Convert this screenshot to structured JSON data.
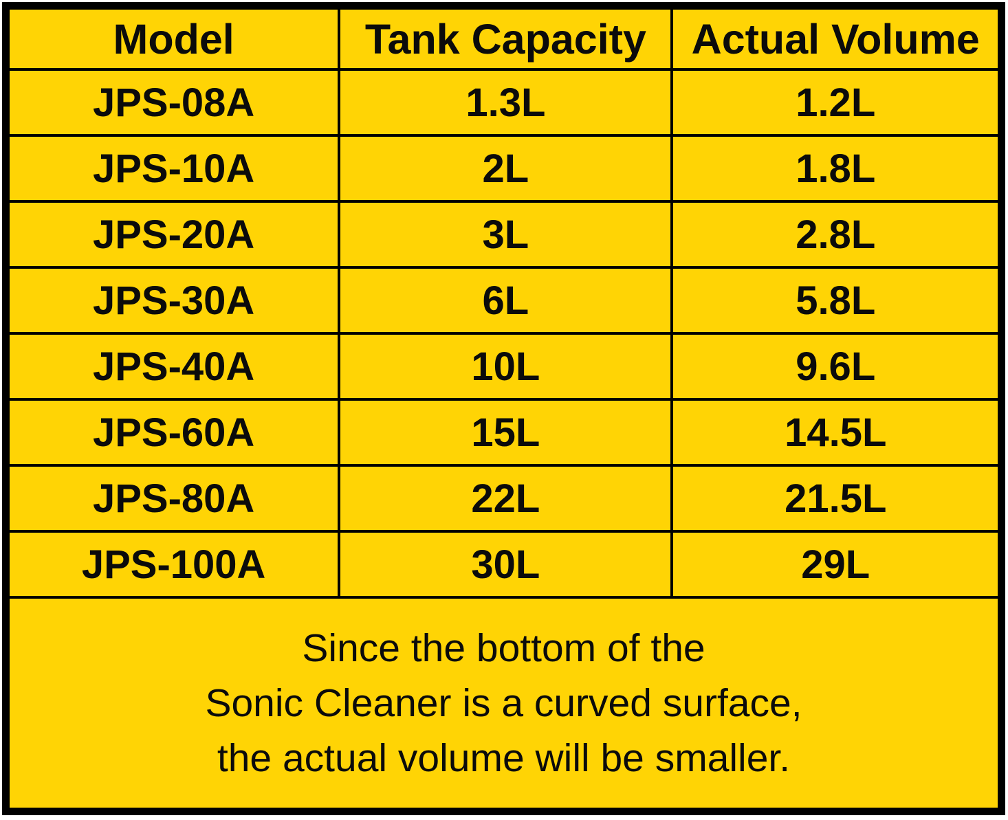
{
  "colors": {
    "table_fill": "#ffd405",
    "border": "#000000",
    "text": "#0b0b0b",
    "page_background": "#ffffff"
  },
  "table": {
    "headers": [
      "Model",
      "Tank Capacity",
      "Actual Volume"
    ],
    "rows": [
      {
        "model": "JPS-08A",
        "tank_capacity": "1.3L",
        "actual_volume": "1.2L"
      },
      {
        "model": "JPS-10A",
        "tank_capacity": "2L",
        "actual_volume": "1.8L"
      },
      {
        "model": "JPS-20A",
        "tank_capacity": "3L",
        "actual_volume": "2.8L"
      },
      {
        "model": "JPS-30A",
        "tank_capacity": "6L",
        "actual_volume": "5.8L"
      },
      {
        "model": "JPS-40A",
        "tank_capacity": "10L",
        "actual_volume": "9.6L"
      },
      {
        "model": "JPS-60A",
        "tank_capacity": "15L",
        "actual_volume": "14.5L"
      },
      {
        "model": "JPS-80A",
        "tank_capacity": "22L",
        "actual_volume": "21.5L"
      },
      {
        "model": "JPS-100A",
        "tank_capacity": "30L",
        "actual_volume": "29L"
      }
    ]
  },
  "note": {
    "lines": [
      "Since the bottom of the",
      "Sonic Cleaner is a curved surface,",
      "the actual volume will be smaller."
    ]
  },
  "chart_data": {
    "type": "table",
    "title": "",
    "columns": [
      "Model",
      "Tank Capacity",
      "Actual Volume"
    ],
    "rows": [
      [
        "JPS-08A",
        "1.3L",
        "1.2L"
      ],
      [
        "JPS-10A",
        "2L",
        "1.8L"
      ],
      [
        "JPS-20A",
        "3L",
        "2.8L"
      ],
      [
        "JPS-30A",
        "6L",
        "5.8L"
      ],
      [
        "JPS-40A",
        "10L",
        "9.6L"
      ],
      [
        "JPS-60A",
        "15L",
        "14.5L"
      ],
      [
        "JPS-80A",
        "22L",
        "21.5L"
      ],
      [
        "JPS-100A",
        "30L",
        "29L"
      ]
    ],
    "tank_capacity_liters": [
      1.3,
      2,
      3,
      6,
      10,
      15,
      22,
      30
    ],
    "actual_volume_liters": [
      1.2,
      1.8,
      2.8,
      5.8,
      9.6,
      14.5,
      21.5,
      29
    ],
    "note": "Since the bottom of the Sonic Cleaner is a curved surface, the actual volume will be smaller.",
    "layout": {
      "grid": "full black cell borders",
      "fill": "#ffd405"
    }
  }
}
